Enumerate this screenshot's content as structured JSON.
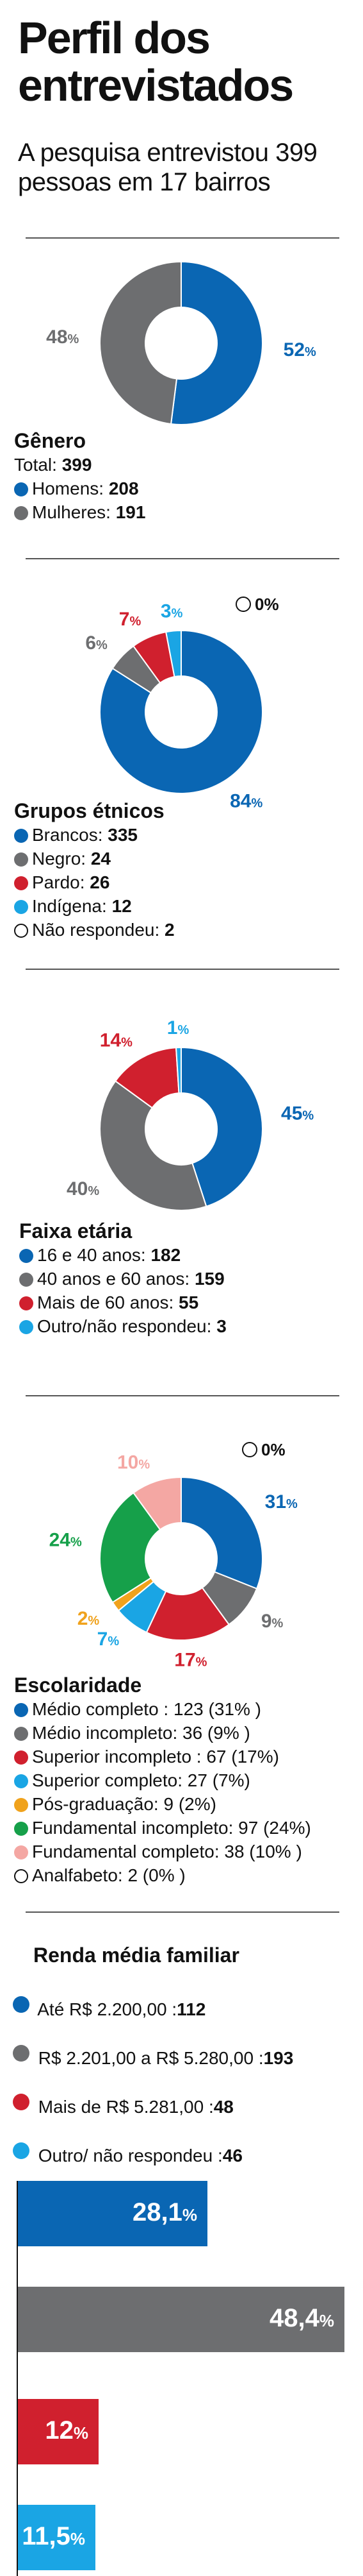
{
  "title": "Perfil dos entrevistados",
  "subtitle": "A pesquisa entrevistou 399 pessoas em 17 bairros",
  "chart_data": [
    {
      "type": "pie",
      "title": "Gênero",
      "total_label": "Total:",
      "total_value": "399",
      "labels": [
        "Homens:",
        "Mulheres:"
      ],
      "counts": [
        "208",
        "191"
      ],
      "values": [
        52,
        48
      ],
      "colors": [
        "#0a66b3",
        "#6d6e70"
      ],
      "slice_labels": [
        "52%",
        "48%"
      ]
    },
    {
      "type": "pie",
      "title": "Grupos étnicos",
      "labels": [
        "Brancos:",
        "Negro:",
        "Pardo:",
        "Indígena:",
        "Não respondeu:"
      ],
      "counts": [
        "335",
        "24",
        "26",
        "12",
        "2"
      ],
      "values": [
        84,
        6,
        7,
        3,
        0
      ],
      "colors": [
        "#0a66b3",
        "#6d6e70",
        "#d0202e",
        "#1aa5e4",
        "#ffffff"
      ],
      "slice_labels": [
        "84%",
        "6%",
        "7%",
        "3%",
        "0%"
      ]
    },
    {
      "type": "pie",
      "title": "Faixa etária",
      "labels": [
        "16 e 40 anos:",
        "40 anos e 60 anos:",
        "Mais de 60 anos:",
        "Outro/não respondeu:"
      ],
      "counts": [
        "182",
        "159",
        "55",
        "3"
      ],
      "values": [
        45,
        40,
        14,
        1
      ],
      "colors": [
        "#0a66b3",
        "#6d6e70",
        "#d0202e",
        "#1aa5e4"
      ],
      "slice_labels": [
        "45%",
        "40%",
        "14%",
        "1%"
      ]
    },
    {
      "type": "pie",
      "title": "Escolaridade",
      "labels": [
        "Médio completo : 123 (31% )",
        "Médio incompleto: 36 (9% )",
        "Superior incompleto : 67 (17%)",
        "Superior completo: 27 (7%)",
        "Pós-graduação: 9 (2%)",
        "Fundamental incompleto: 97 (24%)",
        "Fundamental completo: 38 (10% )",
        "Analfabeto: 2  (0% )"
      ],
      "values": [
        31,
        9,
        17,
        7,
        2,
        24,
        10,
        0
      ],
      "colors": [
        "#0a66b3",
        "#6d6e70",
        "#d0202e",
        "#1aa5e4",
        "#f0a21c",
        "#16a04a",
        "#f4a7a3",
        "#ffffff"
      ],
      "slice_labels": [
        "31%",
        "9%",
        "17%",
        "7%",
        "2%",
        "24%",
        "10%",
        "0%"
      ]
    },
    {
      "type": "bar",
      "title": "Renda média familiar",
      "categories": [
        "Até R$ 2.200,00 :",
        "R$ 2.201,00 a R$ 5.280,00 :",
        "Mais de R$ 5.281,00 :",
        "Outro/ não respondeu :"
      ],
      "counts": [
        "112",
        "193",
        "48",
        "46"
      ],
      "values": [
        28.1,
        48.4,
        12,
        11.5
      ],
      "bar_labels": [
        "28,1%",
        "48,4%",
        "12%",
        "11,5%"
      ],
      "colors": [
        "#0a66b3",
        "#6d6e70",
        "#d0202e",
        "#1aa5e4"
      ]
    }
  ]
}
